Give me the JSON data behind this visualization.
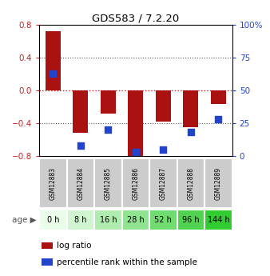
{
  "title": "GDS583 / 7.2.20",
  "samples": [
    "GSM12883",
    "GSM12884",
    "GSM12885",
    "GSM12886",
    "GSM12887",
    "GSM12888",
    "GSM12889"
  ],
  "ages": [
    "0 h",
    "8 h",
    "16 h",
    "28 h",
    "52 h",
    "96 h",
    "144 h"
  ],
  "log_ratios": [
    0.72,
    -0.52,
    -0.28,
    -0.82,
    -0.38,
    -0.45,
    -0.17
  ],
  "percentile_ranks": [
    63,
    8,
    20,
    3,
    5,
    18,
    28
  ],
  "bar_color": "#AA1111",
  "dot_color": "#2244CC",
  "ylim_left": [
    -0.8,
    0.8
  ],
  "ylim_right": [
    0,
    100
  ],
  "yticks_left": [
    -0.8,
    -0.4,
    0.0,
    0.4,
    0.8
  ],
  "yticks_right": [
    0,
    25,
    50,
    75,
    100
  ],
  "ytick_labels_right": [
    "0",
    "25",
    "50",
    "75",
    "100%"
  ],
  "sample_bg_color": "#cccccc",
  "age_colors": [
    "#eafcea",
    "#d0f5d0",
    "#b0ecb0",
    "#90e490",
    "#70dc70",
    "#50d450",
    "#30cc30"
  ],
  "legend_bar_color": "#AA1111",
  "legend_dot_color": "#2244CC",
  "zero_line_color": "#cc2222",
  "grid_line_color": "#555555",
  "bar_width": 0.55,
  "dot_size": 35
}
